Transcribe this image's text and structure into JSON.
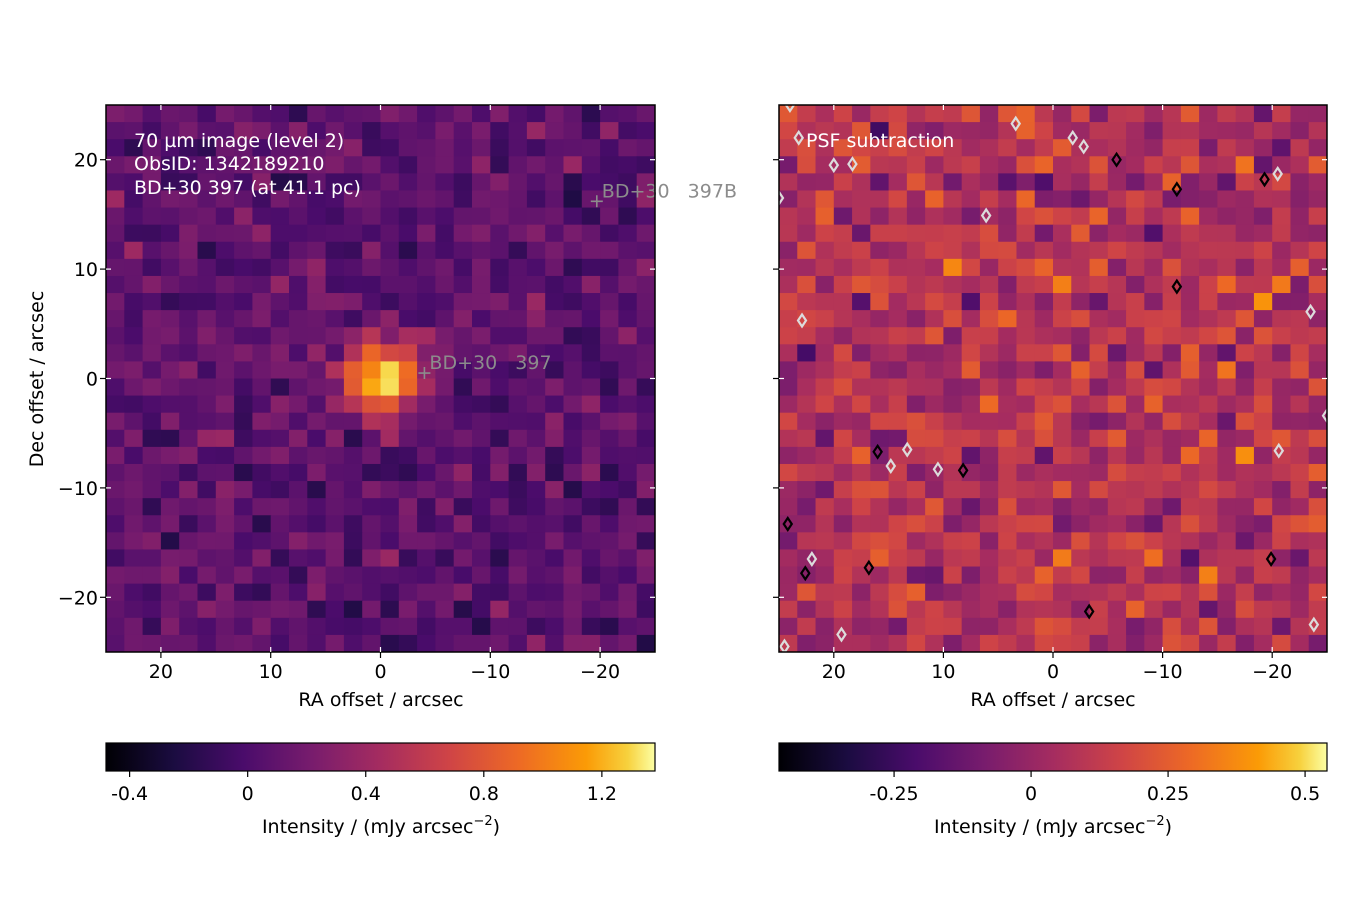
{
  "chart_data": [
    {
      "type": "heatmap",
      "annotations": [
        "70 µm image (level 2)",
        "ObsID: 1342189210",
        "BD+30 397 (at 41.1 pc)"
      ],
      "xlabel": "RA offset / arcsec",
      "ylabel": "Dec offset / arcsec",
      "xlim": [
        25,
        -25
      ],
      "ylim": [
        -25,
        25
      ],
      "x_ticks": [
        20,
        10,
        0,
        -10,
        -20
      ],
      "x_tick_labels": [
        "20",
        "10",
        "0",
        "−10",
        "−20"
      ],
      "y_ticks": [
        20,
        10,
        0,
        -10,
        -20
      ],
      "y_tick_labels": [
        "20",
        "10",
        "0",
        "−10",
        "−20"
      ],
      "colormap": "inferno",
      "color_range": [
        -0.48,
        1.38
      ],
      "colorbar_label": "Intensity / (mJy arcsec",
      "colorbar_exponent": "−2",
      "colorbar_label_close": ")",
      "colorbar_ticks": [
        -0.4,
        0,
        0.4,
        0.8,
        1.2
      ],
      "colorbar_tick_labels": [
        "-0.4",
        "0",
        "0.4",
        "0.8",
        "1.2"
      ],
      "background_level": 0.08,
      "noise_level": 0.12,
      "source": {
        "ra": 0,
        "dec": 0,
        "peak": 1.32,
        "fwhm_arcsec": 5.6
      },
      "markers": [
        {
          "label": "BD+30 397",
          "ra": -4,
          "dec": 0.5
        },
        {
          "label": "BD+30 397B",
          "ra": -19.7,
          "dec": 16.2
        }
      ]
    },
    {
      "type": "heatmap",
      "annotations": [
        "PSF subtraction"
      ],
      "xlabel": "RA offset / arcsec",
      "ylabel": "",
      "xlim": [
        25,
        -25
      ],
      "ylim": [
        -25,
        25
      ],
      "x_ticks": [
        20,
        10,
        0,
        -10,
        -20
      ],
      "x_tick_labels": [
        "20",
        "10",
        "0",
        "−10",
        "−20"
      ],
      "colormap": "inferno",
      "color_range": [
        -0.46,
        0.54
      ],
      "colorbar_label": "Intensity / (mJy arcsec",
      "colorbar_exponent": "−2",
      "colorbar_label_close": ")",
      "colorbar_ticks": [
        -0.25,
        0,
        0.25,
        0.5
      ],
      "colorbar_tick_labels": [
        "-0.25",
        "0",
        "0.25",
        "0.5"
      ],
      "background_level": 0.08,
      "noise_level": 0.1,
      "contours": [
        {
          "color": "#dcdcdc",
          "level": "negative",
          "points": [
            [
              24,
              25
            ],
            [
              22,
              -16.5
            ],
            [
              24.5,
              -24.5
            ],
            [
              19.3,
              -23.4
            ],
            [
              10.5,
              -8.3
            ],
            [
              14.8,
              -8
            ],
            [
              13.3,
              -6.5
            ],
            [
              22.9,
              5.3
            ],
            [
              25,
              16.5
            ],
            [
              20,
              19.5
            ],
            [
              23.2,
              22
            ],
            [
              18.3,
              19.6
            ],
            [
              6.1,
              14.9
            ],
            [
              3.4,
              23.3
            ],
            [
              -2.8,
              21.2
            ],
            [
              -1.8,
              22
            ],
            [
              -20.5,
              18.7
            ],
            [
              -23.5,
              6.1
            ],
            [
              -25,
              -3.4
            ],
            [
              -20.6,
              -6.6
            ],
            [
              -23.8,
              -22.5
            ]
          ]
        },
        {
          "color": "#000000",
          "level": "positive",
          "points": [
            [
              24.2,
              -13.3
            ],
            [
              22.6,
              -17.8
            ],
            [
              16.8,
              -17.3
            ],
            [
              -3.3,
              -21.3
            ],
            [
              -19.9,
              -16.5
            ],
            [
              16,
              -6.7
            ],
            [
              8.2,
              -8.4
            ],
            [
              -19.3,
              18.2
            ],
            [
              -5.8,
              20
            ],
            [
              -11.3,
              17.3
            ],
            [
              -11.3,
              8.4
            ]
          ]
        }
      ]
    }
  ]
}
